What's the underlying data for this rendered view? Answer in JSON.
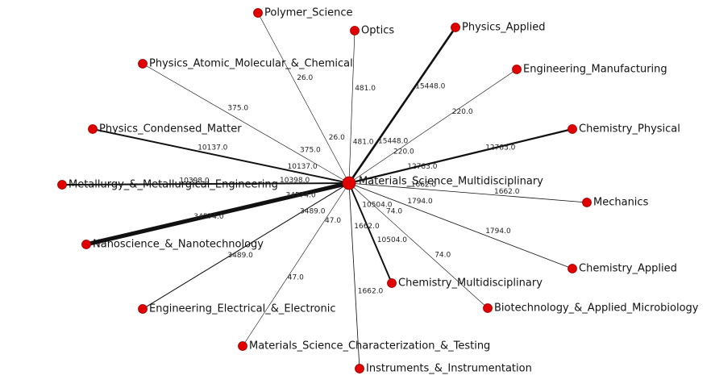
{
  "center": {
    "label": "Materials_Science_Multidisciplinary"
  },
  "edges": [
    {
      "target": "Polymer_Science",
      "weight": 26,
      "label": "26.0"
    },
    {
      "target": "Optics",
      "weight": 481,
      "label": "481.0"
    },
    {
      "target": "Physics_Applied",
      "weight": 15448,
      "label": "15448.0"
    },
    {
      "target": "Physics_Atomic_Molecular_&_Chemical",
      "weight": 375,
      "label": "375.0"
    },
    {
      "target": "Engineering_Manufacturing",
      "weight": 220,
      "label": "220.0"
    },
    {
      "target": "Physics_Condensed_Matter",
      "weight": 10137,
      "label": "10137.0"
    },
    {
      "target": "Chemistry_Physical",
      "weight": 12783,
      "label": "12783.0"
    },
    {
      "target": "Metallurgy_&_Metallurgical_Engineering",
      "weight": 10398,
      "label": "10398.0"
    },
    {
      "target": "Mechanics",
      "weight": 1662,
      "label": "1662.0"
    },
    {
      "target": "Nanoscience_&_Nanotechnology",
      "weight": 34574,
      "label": "34574.0"
    },
    {
      "target": "Chemistry_Applied",
      "weight": 1794,
      "label": "1794.0"
    },
    {
      "target": "Chemistry_Multidisciplinary",
      "weight": 10504,
      "label": "10504.0"
    },
    {
      "target": "Engineering_Electrical_&_Electronic",
      "weight": 3489,
      "label": "3489.0"
    },
    {
      "target": "Biotechnology_&_Applied_Microbiology",
      "weight": 74,
      "label": "74.0"
    },
    {
      "target": "Materials_Science_Characterization_&_Testing",
      "weight": 47,
      "label": "47.0"
    },
    {
      "target": "Instruments_&_Instrumentation",
      "weight": 1662,
      "label": "1662.0"
    }
  ]
}
